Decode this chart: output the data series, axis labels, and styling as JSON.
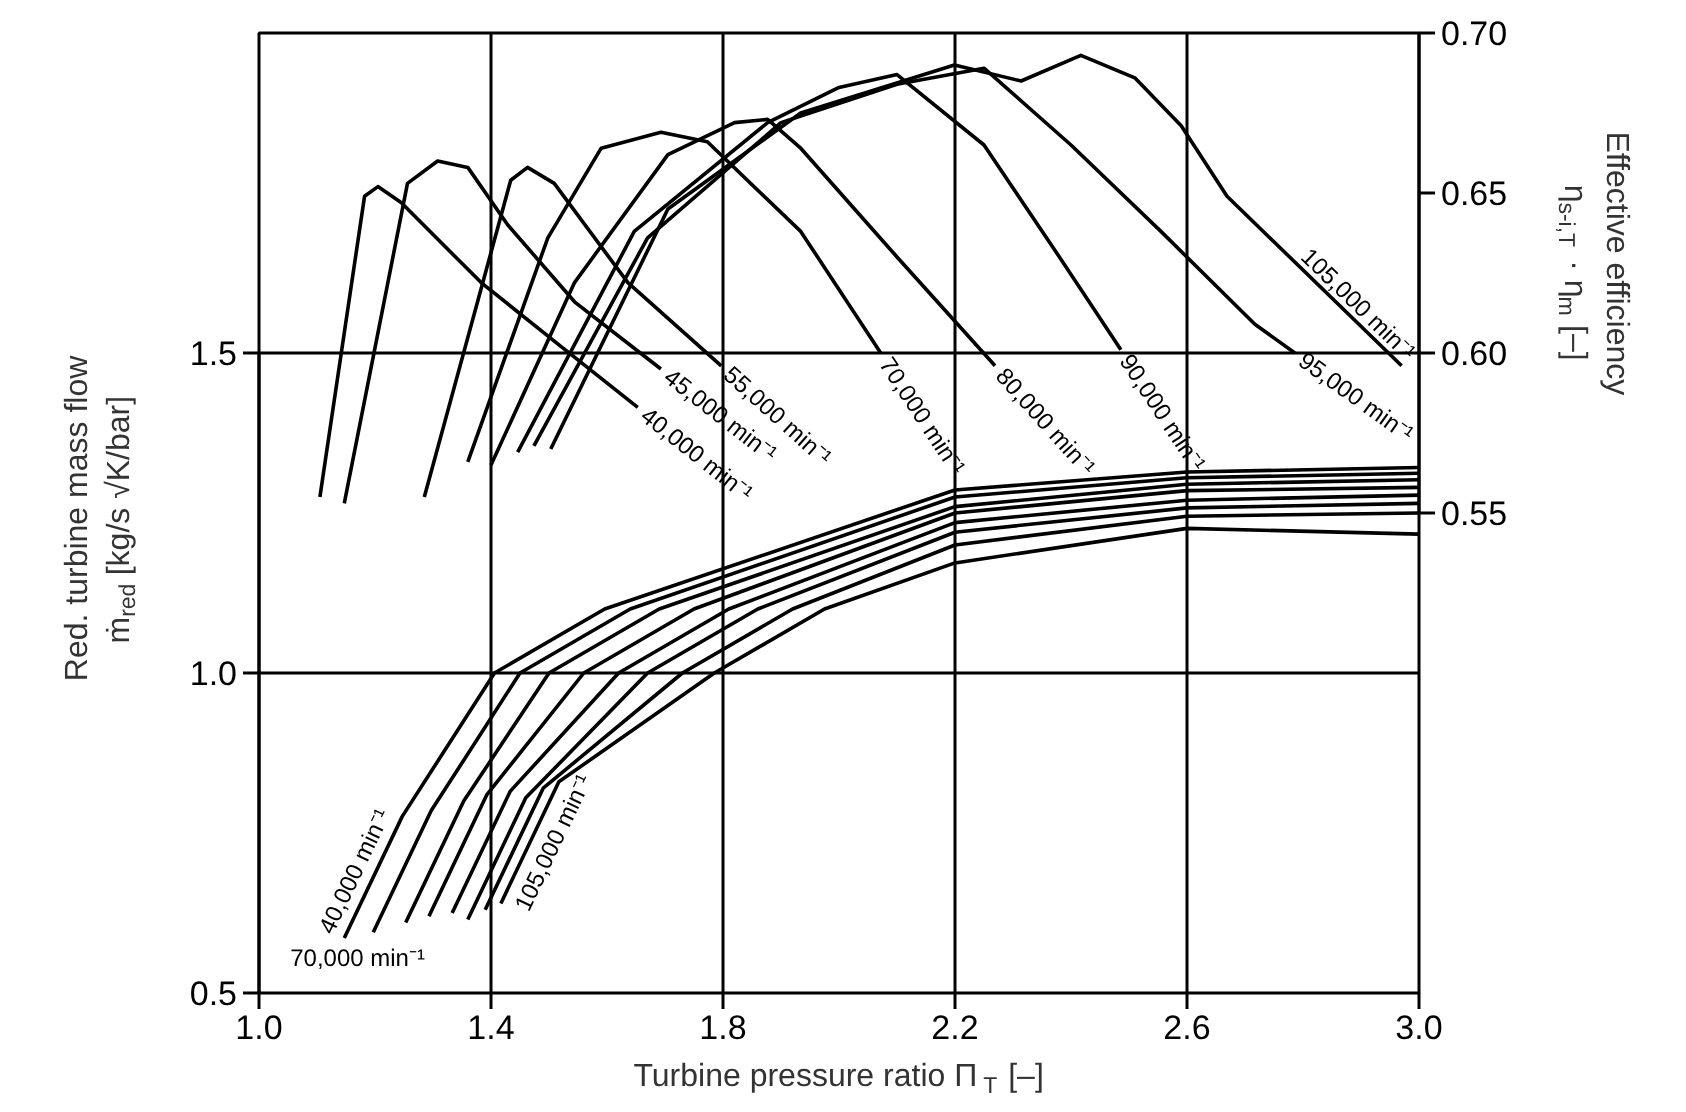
{
  "chart_data": {
    "type": "line",
    "xlabel": "Turbine pressure ratio Π$_{T}$ [–]",
    "ylabel": "Red. turbine mass flow\nṁ$_{red}$ [kg/s √K/bar]",
    "y2label": "Effective efficiency\nη$_{s-i,T}$ · η$_{m}$ [–]",
    "xlim": [
      1.0,
      3.0
    ],
    "xticks": [
      {
        "value": 1.0,
        "label": "1.0"
      },
      1.4,
      1.8,
      2.2,
      2.6,
      {
        "value": 3.0,
        "label": "3.0"
      }
    ],
    "ylim": [
      0.5,
      2.0
    ],
    "yticks": [
      0.5,
      {
        "value": 1.0,
        "label": "1.0"
      },
      1.5
    ],
    "y2lim": [
      0.4,
      0.7
    ],
    "y2ticks": [
      0.55,
      {
        "value": 0.6,
        "label": "0.60"
      },
      0.65,
      {
        "value": 0.7,
        "label": "0.70"
      }
    ],
    "grid": true,
    "line_style": "solid",
    "series": [
      {
        "name": "40,000 min⁻¹",
        "color": "#000000",
        "axis": "y2",
        "x": [
          1.105,
          1.182,
          1.205,
          1.245,
          1.383,
          1.521,
          1.653
        ],
        "values": [
          0.555,
          0.649,
          0.652,
          0.647,
          0.622,
          0.602,
          0.583
        ]
      },
      {
        "name": "45,000 min⁻¹",
        "color": "#000000",
        "axis": "y2",
        "x": [
          1.147,
          1.256,
          1.308,
          1.36,
          1.429,
          1.544,
          1.693
        ],
        "values": [
          0.553,
          0.653,
          0.66,
          0.658,
          0.64,
          0.616,
          0.595
        ]
      },
      {
        "name": "55,000 min⁻¹",
        "color": "#000000",
        "axis": "y2",
        "x": [
          1.285,
          1.434,
          1.463,
          1.509,
          1.636,
          1.797
        ],
        "values": [
          0.555,
          0.654,
          0.658,
          0.653,
          0.622,
          0.596
        ]
      },
      {
        "name": "70,000 min⁻¹",
        "color": "#000000",
        "axis": "y2",
        "x": [
          1.36,
          1.498,
          1.59,
          1.693,
          1.773,
          1.934,
          2.072
        ],
        "values": [
          0.566,
          0.636,
          0.664,
          0.669,
          0.666,
          0.638,
          0.6
        ]
      },
      {
        "name": "80,000 min⁻¹",
        "color": "#000000",
        "axis": "y2",
        "x": [
          1.4,
          1.544,
          1.705,
          1.82,
          1.877,
          1.934,
          2.1,
          2.269
        ],
        "values": [
          0.565,
          0.622,
          0.662,
          0.672,
          0.673,
          0.664,
          0.63,
          0.596
        ]
      },
      {
        "name": "90,000 min⁻¹",
        "color": "#000000",
        "axis": "y2",
        "x": [
          1.446,
          1.647,
          1.877,
          2.0,
          2.1,
          2.25,
          2.38,
          2.486
        ],
        "values": [
          0.569,
          0.638,
          0.672,
          0.683,
          0.687,
          0.665,
          0.63,
          0.601
        ]
      },
      {
        "name": "95,000 min⁻¹",
        "color": "#000000",
        "axis": "y2",
        "x": [
          1.474,
          1.67,
          1.9,
          2.1,
          2.25,
          2.4,
          2.555,
          2.717,
          2.786
        ],
        "values": [
          0.571,
          0.636,
          0.672,
          0.684,
          0.689,
          0.665,
          0.638,
          0.609,
          0.6
        ]
      },
      {
        "name": "105,000 min⁻¹",
        "color": "#000000",
        "axis": "y2",
        "x": [
          1.503,
          1.705,
          1.934,
          2.199,
          2.314,
          2.417,
          2.51,
          2.59,
          2.669,
          2.97
        ],
        "values": [
          0.57,
          0.645,
          0.675,
          0.69,
          0.685,
          0.693,
          0.686,
          0.671,
          0.649,
          0.596
        ]
      },
      {
        "name": "40,000 min⁻¹",
        "color": "#000000",
        "x": [
          1.147,
          1.247,
          1.406,
          1.596,
          2.2,
          2.6,
          3.0
        ],
        "values": [
          0.586,
          0.776,
          1.0,
          1.1,
          1.286,
          1.314,
          1.321
        ]
      },
      {
        "color": "#000000",
        "x": [
          1.197,
          1.297,
          1.45,
          1.64,
          2.2,
          2.6,
          3.0
        ],
        "values": [
          0.595,
          0.785,
          1.0,
          1.1,
          1.275,
          1.305,
          1.312
        ]
      },
      {
        "color": "#000000",
        "x": [
          1.253,
          1.353,
          1.5,
          1.69,
          2.2,
          2.6,
          3.0
        ],
        "values": [
          0.61,
          0.8,
          1.0,
          1.1,
          1.26,
          1.295,
          1.302
        ]
      },
      {
        "name": "70,000 min⁻¹",
        "color": "#000000",
        "x": [
          1.293,
          1.393,
          1.56,
          1.75,
          2.2,
          2.6,
          3.0
        ],
        "values": [
          0.62,
          0.81,
          1.0,
          1.1,
          1.25,
          1.285,
          1.29
        ]
      },
      {
        "color": "#000000",
        "x": [
          1.333,
          1.433,
          1.62,
          1.81,
          2.2,
          2.6,
          3.0
        ],
        "values": [
          0.625,
          0.815,
          1.0,
          1.1,
          1.235,
          1.27,
          1.278
        ]
      },
      {
        "color": "#000000",
        "x": [
          1.36,
          1.46,
          1.67,
          1.86,
          2.2,
          2.6,
          3.0
        ],
        "values": [
          0.615,
          0.805,
          1.0,
          1.1,
          1.22,
          1.258,
          1.265
        ]
      },
      {
        "color": "#000000",
        "x": [
          1.39,
          1.49,
          1.73,
          1.92,
          2.2,
          2.6,
          3.0
        ],
        "values": [
          0.63,
          0.82,
          1.0,
          1.1,
          1.2,
          1.245,
          1.25
        ]
      },
      {
        "name": "105,000 min⁻¹",
        "color": "#000000",
        "x": [
          1.417,
          1.517,
          1.785,
          1.975,
          2.2,
          2.6,
          3.0
        ],
        "values": [
          0.64,
          0.83,
          1.0,
          1.1,
          1.172,
          1.226,
          1.217
        ]
      }
    ]
  }
}
